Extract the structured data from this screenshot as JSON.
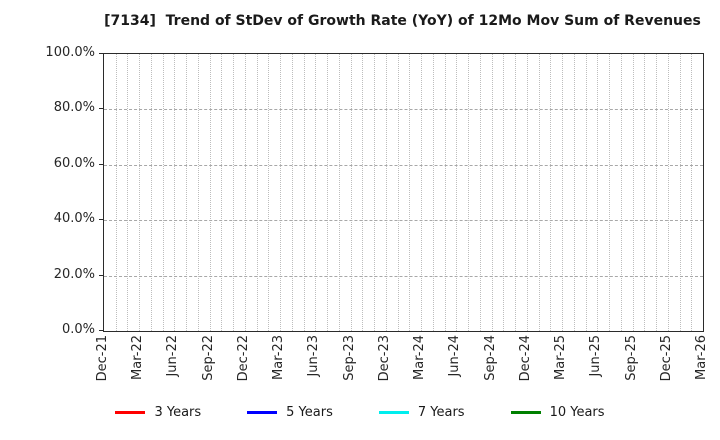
{
  "chart_data": {
    "type": "line",
    "title": "[7134]  Trend of StDev of Growth Rate (YoY) of 12Mo Mov Sum of Revenues",
    "xlabel": "",
    "ylabel": "",
    "ylim": [
      0,
      100
    ],
    "y_tick_labels": [
      "0.0%",
      "20.0%",
      "40.0%",
      "60.0%",
      "80.0%",
      "100.0%"
    ],
    "y_tick_values": [
      0,
      20,
      40,
      60,
      80,
      100
    ],
    "y_gridline_values": [
      20,
      40,
      60,
      80
    ],
    "x_tick_labels": [
      "Dec-21",
      "Mar-22",
      "Jun-22",
      "Sep-22",
      "Dec-22",
      "Mar-23",
      "Jun-23",
      "Sep-23",
      "Dec-23",
      "Mar-24",
      "Jun-24",
      "Sep-24",
      "Dec-24",
      "Mar-25",
      "Jun-25",
      "Sep-25",
      "Dec-25",
      "Mar-26"
    ],
    "x_months_span": 51,
    "x_months_per_tick": 3,
    "grid": true,
    "grid_vertical_style": "dotted-monthly",
    "grid_horizontal_style": "dashed",
    "legend_position": "bottom",
    "series": [
      {
        "name": "3 Years",
        "color": "#ff0000",
        "values": []
      },
      {
        "name": "5 Years",
        "color": "#0000ff",
        "values": []
      },
      {
        "name": "7 Years",
        "color": "#00eeee",
        "values": []
      },
      {
        "name": "10 Years",
        "color": "#008000",
        "values": []
      }
    ]
  },
  "colors": {
    "background": "#ffffff",
    "plot_border": "#2b2b2b",
    "grid_vertical": "#bdbdbd",
    "grid_horizontal": "#a8a8a8",
    "text": "#262626"
  }
}
